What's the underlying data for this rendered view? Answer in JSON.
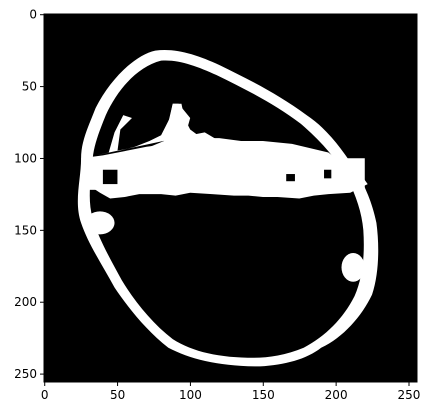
{
  "image": {
    "description_kind": "binary mask displayed with matplotlib imshow",
    "colors": {
      "background": "#000000",
      "mask": "#ffffff",
      "axes": "#000000"
    },
    "x_ticks": [
      0,
      50,
      100,
      150,
      200,
      250
    ],
    "y_ticks": [
      0,
      50,
      100,
      150,
      200,
      250
    ],
    "x_range": [
      -0.5,
      255.5
    ],
    "y_range": [
      -0.5,
      255.5
    ],
    "x_tick_labels": [
      "0",
      "50",
      "100",
      "150",
      "200",
      "250"
    ],
    "y_tick_labels": [
      "0",
      "50",
      "100",
      "150",
      "200",
      "250"
    ]
  }
}
